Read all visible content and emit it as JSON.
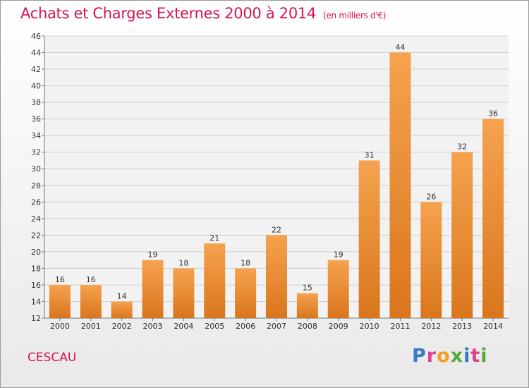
{
  "header": {
    "title": "Achats et Charges Externes 2000 à 2014",
    "subtitle": "(en milliers d'€)"
  },
  "footer": {
    "commune": "CESCAU",
    "logo": "Proxiti"
  },
  "colors": {
    "title": "#d6154f",
    "bar_light": "#f6a24f",
    "bar_dark": "#d9761d",
    "logo_letters": [
      "#3a78c9",
      "#e0428a",
      "#f0a020",
      "#53a93f",
      "#3a78c9",
      "#e0428a",
      "#53a93f"
    ]
  },
  "chart_data": {
    "type": "bar",
    "categories": [
      "2000",
      "2001",
      "2002",
      "2003",
      "2004",
      "2005",
      "2006",
      "2007",
      "2008",
      "2009",
      "2010",
      "2011",
      "2012",
      "2013",
      "2014"
    ],
    "values": [
      16,
      16,
      14,
      19,
      18,
      21,
      18,
      22,
      15,
      19,
      31,
      44,
      26,
      32,
      36
    ],
    "ylim": [
      12,
      46
    ],
    "yticks": [
      12,
      14,
      16,
      18,
      20,
      22,
      24,
      26,
      28,
      30,
      32,
      34,
      36,
      38,
      40,
      42,
      44,
      46
    ],
    "grid": true,
    "title": "Achats et Charges Externes 2000 à 2014",
    "xlabel": "",
    "ylabel": ""
  }
}
